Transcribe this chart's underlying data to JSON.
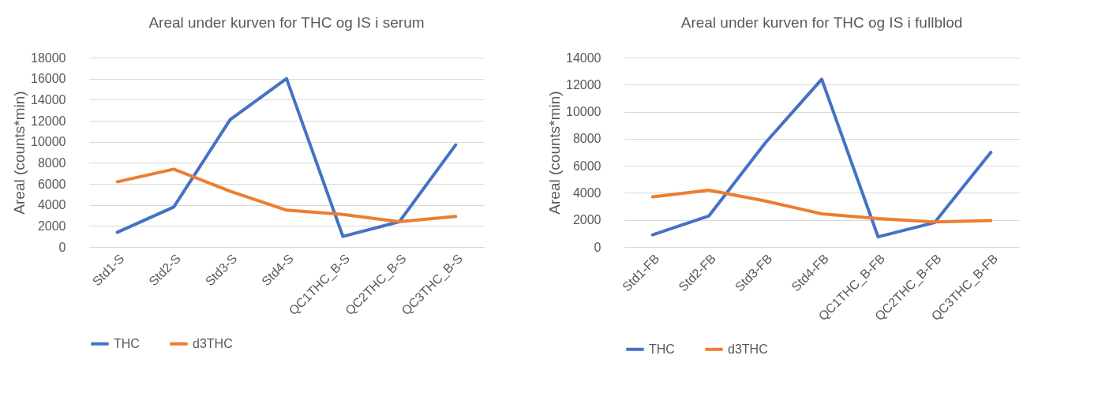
{
  "chart_data": [
    {
      "type": "line",
      "title": "Areal under kurven for THC og IS i serum",
      "ylabel": "Areal (counts*min)",
      "categories": [
        "Std1-S",
        "Std2-S",
        "Std3-S",
        "Std4-S",
        "QC1THC_B-S",
        "QC2THC_B-S",
        "QC3THC_B-S"
      ],
      "series": [
        {
          "name": "THC",
          "color": "#4472c4",
          "values": [
            1400,
            3800,
            12100,
            16000,
            1000,
            2400,
            9700
          ]
        },
        {
          "name": "d3THC",
          "color": "#ed7d31",
          "values": [
            6200,
            7400,
            5300,
            3500,
            3100,
            2400,
            2900
          ]
        }
      ],
      "ylim": [
        0,
        18000
      ],
      "yticks": [
        0,
        2000,
        4000,
        6000,
        8000,
        10000,
        12000,
        14000,
        16000,
        18000
      ],
      "grid": "y",
      "legend": "bottom",
      "marker": "none"
    },
    {
      "type": "line",
      "title": "Areal under kurven for THC og IS i fullblod",
      "ylabel": "Areal (counts*min)",
      "categories": [
        "Std1-FB",
        "Std2-FB",
        "Std3-FB",
        "Std4-FB",
        "QC1THC_B-FB",
        "QC2THC_B-FB",
        "QC3THC_B-FB"
      ],
      "series": [
        {
          "name": "THC",
          "color": "#4472c4",
          "values": [
            900,
            2300,
            7700,
            12400,
            750,
            1800,
            7000
          ]
        },
        {
          "name": "d3THC",
          "color": "#ed7d31",
          "values": [
            3700,
            4200,
            3400,
            2450,
            2100,
            1850,
            1950
          ]
        }
      ],
      "ylim": [
        0,
        14000
      ],
      "yticks": [
        0,
        2000,
        4000,
        6000,
        8000,
        10000,
        12000,
        14000
      ],
      "grid": "y",
      "legend": "bottom",
      "marker": "none"
    }
  ]
}
